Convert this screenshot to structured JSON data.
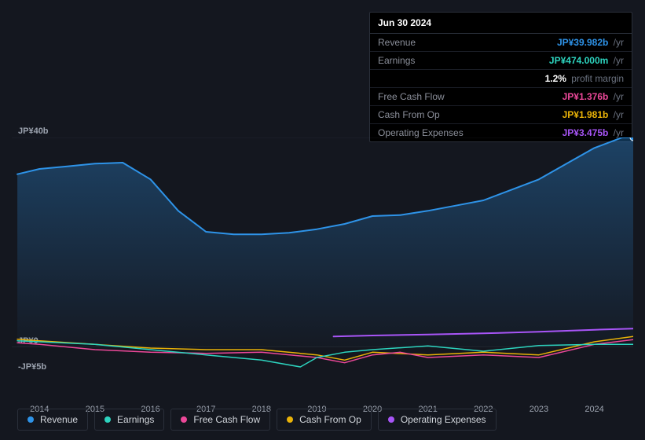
{
  "tooltip": {
    "date": "Jun 30 2024",
    "rows": [
      {
        "label": "Revenue",
        "value": "JP¥39.982b",
        "suffix": "/yr",
        "color": "#2e93e8"
      },
      {
        "label": "Earnings",
        "value": "JP¥474.000m",
        "suffix": "/yr",
        "color": "#2dd4bf"
      },
      {
        "label": "",
        "value": "1.2%",
        "suffix": "profit margin",
        "color": "#ffffff"
      },
      {
        "label": "Free Cash Flow",
        "value": "JP¥1.376b",
        "suffix": "/yr",
        "color": "#ec4899"
      },
      {
        "label": "Cash From Op",
        "value": "JP¥1.981b",
        "suffix": "/yr",
        "color": "#eab308"
      },
      {
        "label": "Operating Expenses",
        "value": "JP¥3.475b",
        "suffix": "/yr",
        "color": "#a855f7"
      }
    ]
  },
  "chart": {
    "type": "area-line",
    "background": "#14171f",
    "plot_bg_top": "#182436",
    "plot_bg_bottom": "#151922",
    "grid_color": "#4b5563",
    "y_axis": {
      "ticks": [
        {
          "label": "JP¥40b",
          "value": 40
        },
        {
          "label": "JP¥0",
          "value": 0
        },
        {
          "label": "-JP¥5b",
          "value": -5
        }
      ],
      "min": -5,
      "max": 40
    },
    "x_axis": {
      "ticks": [
        "2014",
        "2015",
        "2016",
        "2017",
        "2018",
        "2019",
        "2020",
        "2021",
        "2022",
        "2023",
        "2024"
      ],
      "min": 2013.5,
      "max": 2024.7
    },
    "series": {
      "revenue": {
        "color": "#2e93e8",
        "fill_top": "rgba(46,147,232,0.35)",
        "fill_bottom": "rgba(46,147,232,0.02)",
        "points": [
          [
            2013.6,
            33
          ],
          [
            2014,
            34
          ],
          [
            2014.5,
            34.5
          ],
          [
            2015,
            35
          ],
          [
            2015.5,
            35.2
          ],
          [
            2016,
            32
          ],
          [
            2016.5,
            26
          ],
          [
            2017,
            22
          ],
          [
            2017.5,
            21.5
          ],
          [
            2018,
            21.5
          ],
          [
            2018.5,
            21.8
          ],
          [
            2019,
            22.5
          ],
          [
            2019.5,
            23.5
          ],
          [
            2020,
            25
          ],
          [
            2020.5,
            25.2
          ],
          [
            2021,
            26
          ],
          [
            2021.5,
            27
          ],
          [
            2022,
            28
          ],
          [
            2022.5,
            30
          ],
          [
            2023,
            32
          ],
          [
            2023.5,
            35
          ],
          [
            2024,
            38
          ],
          [
            2024.5,
            40
          ],
          [
            2024.7,
            40
          ]
        ]
      },
      "earnings": {
        "color": "#2dd4bf",
        "points": [
          [
            2013.6,
            1.2
          ],
          [
            2014,
            1.0
          ],
          [
            2015,
            0.5
          ],
          [
            2016,
            -0.5
          ],
          [
            2017,
            -1.5
          ],
          [
            2018,
            -2.5
          ],
          [
            2018.7,
            -3.8
          ],
          [
            2019,
            -2
          ],
          [
            2019.5,
            -1
          ],
          [
            2020,
            -0.5
          ],
          [
            2021,
            0.2
          ],
          [
            2022,
            -0.8
          ],
          [
            2023,
            0.3
          ],
          [
            2024,
            0.5
          ],
          [
            2024.7,
            0.5
          ]
        ]
      },
      "free_cash_flow": {
        "color": "#ec4899",
        "points": [
          [
            2013.6,
            0.8
          ],
          [
            2014,
            0.5
          ],
          [
            2015,
            -0.5
          ],
          [
            2016,
            -1.0
          ],
          [
            2017,
            -1.2
          ],
          [
            2018,
            -1.0
          ],
          [
            2019,
            -2.0
          ],
          [
            2019.5,
            -3.0
          ],
          [
            2020,
            -1.5
          ],
          [
            2020.5,
            -1.0
          ],
          [
            2021,
            -2.0
          ],
          [
            2022,
            -1.5
          ],
          [
            2023,
            -2.0
          ],
          [
            2024,
            0.5
          ],
          [
            2024.7,
            1.4
          ]
        ]
      },
      "cash_from_op": {
        "color": "#eab308",
        "points": [
          [
            2013.6,
            1.5
          ],
          [
            2014,
            1.2
          ],
          [
            2015,
            0.5
          ],
          [
            2016,
            -0.2
          ],
          [
            2017,
            -0.5
          ],
          [
            2018,
            -0.5
          ],
          [
            2019,
            -1.5
          ],
          [
            2019.5,
            -2.5
          ],
          [
            2020,
            -1.0
          ],
          [
            2021,
            -1.5
          ],
          [
            2022,
            -1.0
          ],
          [
            2023,
            -1.5
          ],
          [
            2024,
            1.0
          ],
          [
            2024.7,
            2.0
          ]
        ]
      },
      "operating_expenses": {
        "color": "#a855f7",
        "points": [
          [
            2019.3,
            2.0
          ],
          [
            2020,
            2.2
          ],
          [
            2021,
            2.4
          ],
          [
            2022,
            2.6
          ],
          [
            2023,
            2.9
          ],
          [
            2024,
            3.3
          ],
          [
            2024.7,
            3.5
          ]
        ]
      }
    }
  },
  "legend": [
    {
      "label": "Revenue",
      "color": "#2e93e8"
    },
    {
      "label": "Earnings",
      "color": "#2dd4bf"
    },
    {
      "label": "Free Cash Flow",
      "color": "#ec4899"
    },
    {
      "label": "Cash From Op",
      "color": "#eab308"
    },
    {
      "label": "Operating Expenses",
      "color": "#a855f7"
    }
  ]
}
